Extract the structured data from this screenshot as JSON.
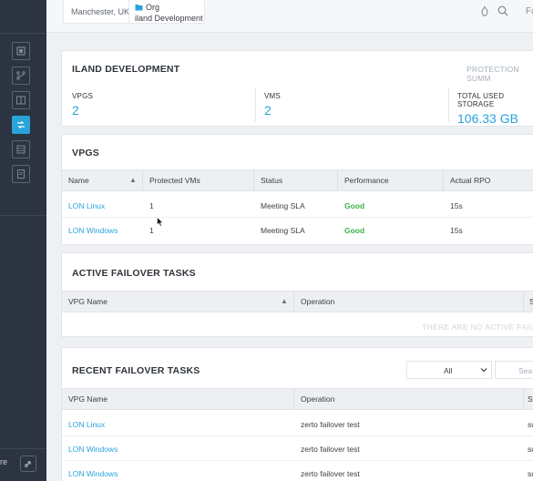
{
  "topbar": {
    "location": "Manchester, UK",
    "org_label": "Org",
    "org_name": "iland Development",
    "cut_text": "Fa"
  },
  "sidebar": {
    "bottom_text": "re"
  },
  "summary": {
    "title": "ILAND DEVELOPMENT",
    "link": "PROTECTION SUMM",
    "stats": [
      {
        "label": "VPGS",
        "value": "2"
      },
      {
        "label": "VMS",
        "value": "2"
      },
      {
        "label": "TOTAL USED STORAGE",
        "value": "106.33 GB"
      }
    ]
  },
  "vpgs": {
    "title": "VPGS",
    "columns": [
      "Name",
      "Protected VMs",
      "Status",
      "Performance",
      "Actual RPO"
    ],
    "rows": [
      {
        "name": "LON Linux",
        "vms": "1",
        "status": "Meeting SLA",
        "performance": "Good",
        "rpo": "15s"
      },
      {
        "name": "LON Windows",
        "vms": "1",
        "status": "Meeting SLA",
        "performance": "Good",
        "rpo": "15s"
      }
    ]
  },
  "active": {
    "title": "ACTIVE FAILOVER TASKS",
    "columns": [
      "VPG Name",
      "Operation",
      "S"
    ],
    "empty_text": "THERE ARE NO ACTIVE FAIL"
  },
  "recent": {
    "title": "RECENT FAILOVER TASKS",
    "filter_value": "All",
    "search_placeholder": "Sea",
    "columns": [
      "VPG Name",
      "Operation",
      "St"
    ],
    "rows": [
      {
        "name": "LON Linux",
        "operation": "zerto failover test",
        "status": "su"
      },
      {
        "name": "LON Windows",
        "operation": "zerto failover test",
        "status": "su"
      },
      {
        "name": "LON Windows",
        "operation": "zerto failover test",
        "status": "su"
      }
    ]
  },
  "colors": {
    "accent": "#2aa3db",
    "good": "#3cb44a",
    "sidebar": "#2b3440"
  }
}
